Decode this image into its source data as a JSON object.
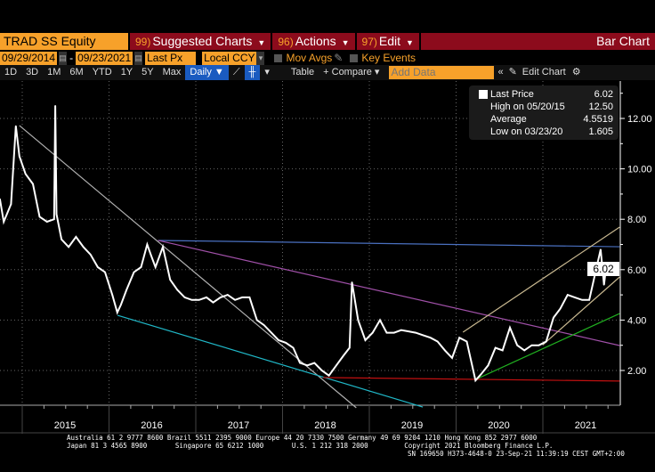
{
  "header": {
    "ticker": "TRAD SS Equity",
    "menus": [
      {
        "num": "99)",
        "label": "Suggested Charts"
      },
      {
        "num": "96)",
        "label": "Actions"
      },
      {
        "num": "97)",
        "label": "Edit"
      }
    ],
    "chart_type": "Bar Chart"
  },
  "controls": {
    "start_date": "09/29/2014",
    "end_date": "09/23/2021",
    "separator": "-",
    "field": "Last Px",
    "currency": "Local CCY",
    "mov_avgs": "Mov Avgs",
    "key_events": "Key Events"
  },
  "toolbar": {
    "ranges": [
      "1D",
      "3D",
      "1M",
      "6M",
      "YTD",
      "1Y",
      "5Y",
      "Max"
    ],
    "frequency": "Daily ▼",
    "table": "Table",
    "compare": "+ Compare ▾",
    "add_data_placeholder": "Add Data",
    "edit_chart": "Edit Chart"
  },
  "legend": {
    "rows": [
      {
        "label": "Last Price",
        "value": "6.02"
      },
      {
        "label": "High on 05/20/15",
        "value": "12.50"
      },
      {
        "label": "Average",
        "value": "4.5519"
      },
      {
        "label": "Low on 03/23/20",
        "value": "1.605"
      }
    ]
  },
  "last_price_tag": "6.02",
  "footer": {
    "line1": "Australia 61 2 9777 8600 Brazil 5511 2395 9000 Europe 44 20 7330 7500 Germany 49 69 9204 1210 Hong Kong 852 2977 6000",
    "line2": "Japan 81 3 4565 8900       Singapore 65 6212 1000       U.S. 1 212 318 2000         Copyright 2021 Bloomberg Finance L.P.",
    "line3": "SN 169650 H373-4648-0 23-Sep-21 11:39:19 CEST GMT+2:00"
  },
  "chart_data": {
    "type": "line",
    "xlim": [
      "2014-09-29",
      "2021-09-23"
    ],
    "ylim": [
      0.5,
      13.5
    ],
    "yticks": [
      2,
      4,
      6,
      8,
      10,
      12
    ],
    "ytick_labels": [
      "2.00",
      "4.00",
      "6.00",
      "8.00",
      "10.00",
      "12.00"
    ],
    "xtick_labels": [
      "2015",
      "2016",
      "2017",
      "2018",
      "2019",
      "2020",
      "2021"
    ],
    "grid": true,
    "series": [
      {
        "color": "#ffffff",
        "points": [
          [
            "2014-09-29",
            8.8
          ],
          [
            "2014-10-15",
            7.9
          ],
          [
            "2014-11-15",
            8.6
          ],
          [
            "2014-12-05",
            11.7
          ],
          [
            "2014-12-20",
            10.5
          ],
          [
            "2015-01-15",
            9.8
          ],
          [
            "2015-02-15",
            9.4
          ],
          [
            "2015-03-15",
            8.1
          ],
          [
            "2015-04-15",
            7.9
          ],
          [
            "2015-05-15",
            8.0
          ],
          [
            "2015-05-20",
            12.5
          ],
          [
            "2015-05-25",
            8.2
          ],
          [
            "2015-06-15",
            7.2
          ],
          [
            "2015-07-15",
            6.9
          ],
          [
            "2015-08-15",
            7.3
          ],
          [
            "2015-09-15",
            6.9
          ],
          [
            "2015-10-15",
            6.6
          ],
          [
            "2015-11-15",
            6.1
          ],
          [
            "2015-12-15",
            5.9
          ],
          [
            "2016-01-15",
            5.0
          ],
          [
            "2016-02-05",
            4.3
          ],
          [
            "2016-02-20",
            4.6
          ],
          [
            "2016-03-15",
            5.2
          ],
          [
            "2016-04-15",
            5.9
          ],
          [
            "2016-05-15",
            6.1
          ],
          [
            "2016-06-10",
            7.0
          ],
          [
            "2016-06-25",
            6.6
          ],
          [
            "2016-07-15",
            6.1
          ],
          [
            "2016-08-15",
            6.9
          ],
          [
            "2016-09-15",
            5.6
          ],
          [
            "2016-10-15",
            5.2
          ],
          [
            "2016-11-15",
            4.9
          ],
          [
            "2016-12-15",
            4.8
          ],
          [
            "2017-01-15",
            4.8
          ],
          [
            "2017-02-15",
            4.9
          ],
          [
            "2017-03-15",
            4.7
          ],
          [
            "2017-04-15",
            4.9
          ],
          [
            "2017-05-15",
            5.0
          ],
          [
            "2017-06-15",
            4.8
          ],
          [
            "2017-07-15",
            4.9
          ],
          [
            "2017-08-15",
            4.9
          ],
          [
            "2017-09-15",
            4.0
          ],
          [
            "2017-10-15",
            3.8
          ],
          [
            "2017-11-15",
            3.5
          ],
          [
            "2017-12-15",
            3.2
          ],
          [
            "2018-01-15",
            3.1
          ],
          [
            "2018-02-15",
            2.9
          ],
          [
            "2018-03-15",
            2.3
          ],
          [
            "2018-04-15",
            2.2
          ],
          [
            "2018-05-15",
            2.3
          ],
          [
            "2018-06-15",
            2.0
          ],
          [
            "2018-07-15",
            1.8
          ],
          [
            "2018-08-15",
            2.2
          ],
          [
            "2018-09-15",
            2.6
          ],
          [
            "2018-10-10",
            2.9
          ],
          [
            "2018-10-20",
            5.5
          ],
          [
            "2018-11-15",
            4.0
          ],
          [
            "2018-12-15",
            3.2
          ],
          [
            "2019-01-15",
            3.5
          ],
          [
            "2019-02-15",
            4.0
          ],
          [
            "2019-03-15",
            3.5
          ],
          [
            "2019-04-15",
            3.5
          ],
          [
            "2019-05-15",
            3.6
          ],
          [
            "2019-06-15",
            3.55
          ],
          [
            "2019-07-15",
            3.5
          ],
          [
            "2019-08-15",
            3.4
          ],
          [
            "2019-09-15",
            3.3
          ],
          [
            "2019-10-15",
            3.15
          ],
          [
            "2019-11-15",
            2.8
          ],
          [
            "2019-12-15",
            2.5
          ],
          [
            "2020-01-15",
            3.3
          ],
          [
            "2020-02-15",
            3.15
          ],
          [
            "2020-03-23",
            1.605
          ],
          [
            "2020-04-15",
            1.85
          ],
          [
            "2020-05-15",
            2.2
          ],
          [
            "2020-06-15",
            2.9
          ],
          [
            "2020-07-15",
            2.8
          ],
          [
            "2020-08-15",
            3.7
          ],
          [
            "2020-09-15",
            3.0
          ],
          [
            "2020-10-15",
            2.8
          ],
          [
            "2020-11-15",
            3.0
          ],
          [
            "2020-12-15",
            3.0
          ],
          [
            "2021-01-15",
            3.15
          ],
          [
            "2021-02-15",
            4.1
          ],
          [
            "2021-03-15",
            4.45
          ],
          [
            "2021-04-15",
            5.0
          ],
          [
            "2021-05-15",
            4.9
          ],
          [
            "2021-06-15",
            4.8
          ],
          [
            "2021-07-15",
            4.8
          ],
          [
            "2021-08-15",
            6.1
          ],
          [
            "2021-09-01",
            6.8
          ],
          [
            "2021-09-15",
            5.4
          ],
          [
            "2021-09-23",
            6.02
          ]
        ]
      }
    ],
    "trendlines": [
      {
        "color": "#b0b0b0",
        "from": [
          "2014-12-20",
          11.72
        ],
        "to": [
          "2018-11-07",
          0.52
        ]
      },
      {
        "color": "#4a70c0",
        "from": [
          "2016-07-26",
          7.16
        ],
        "to": [
          "2021-11-20",
          6.91
        ]
      },
      {
        "color": "#a050a8",
        "from": [
          "2016-07-26",
          7.16
        ],
        "to": [
          "2021-11-20",
          2.99
        ]
      },
      {
        "color": "#20b8c8",
        "from": [
          "2016-02-06",
          4.19
        ],
        "to": [
          "2019-08-14",
          0.55
        ]
      },
      {
        "color": "#c01010",
        "from": [
          "2018-06-21",
          1.72
        ],
        "to": [
          "2021-11-20",
          1.58
        ]
      },
      {
        "color": "#20b020",
        "from": [
          "2020-04-01",
          1.68
        ],
        "to": [
          "2021-11-20",
          4.26
        ]
      },
      {
        "color": "#c8b890",
        "from": [
          "2020-01-30",
          3.52
        ],
        "to": [
          "2021-11-20",
          7.69
        ]
      },
      {
        "color": "#c8b890",
        "from": [
          "2021-01-01",
          3.02
        ],
        "to": [
          "2021-11-20",
          5.71
        ]
      }
    ]
  }
}
